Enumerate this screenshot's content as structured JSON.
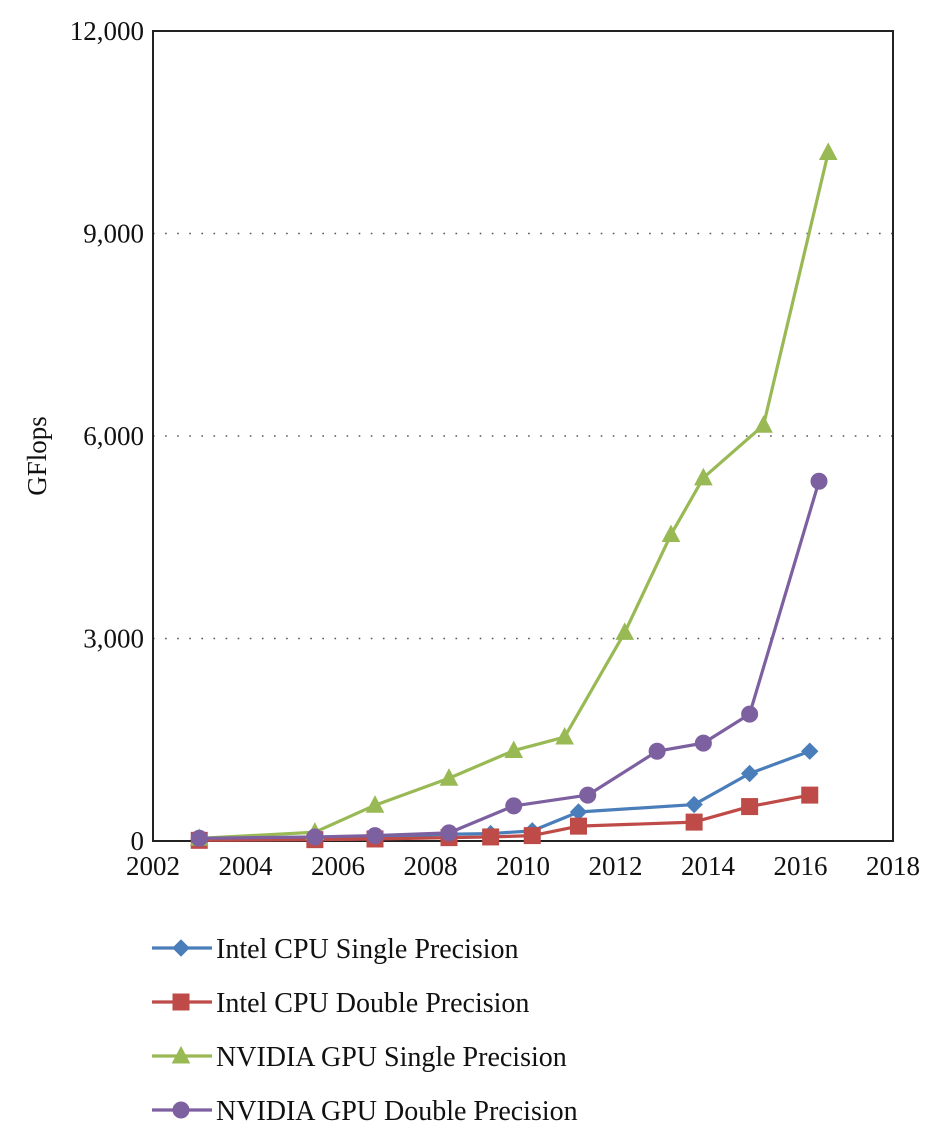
{
  "chart_data": {
    "type": "line",
    "title": "",
    "xlabel": "",
    "ylabel": "GFlops",
    "xlim": [
      2002,
      2018
    ],
    "ylim": [
      0,
      12000
    ],
    "x_ticks": [
      2002,
      2004,
      2006,
      2008,
      2010,
      2012,
      2014,
      2016,
      2018
    ],
    "x_tick_labels": [
      "2002",
      "2004",
      "2006",
      "2008",
      "2010",
      "2012",
      "2014",
      "2016",
      "2018"
    ],
    "y_ticks": [
      0,
      3000,
      6000,
      9000,
      12000
    ],
    "y_tick_labels": [
      "0",
      "3,000",
      "6,000",
      "9,000",
      "12,000"
    ],
    "grid": "horizontal dotted",
    "legend_position": "bottom",
    "series": [
      {
        "name": "Intel CPU Single Precision",
        "color": "#4a7ebb",
        "marker": "diamond",
        "x": [
          2003.0,
          2005.5,
          2006.8,
          2008.4,
          2009.3,
          2010.2,
          2011.2,
          2013.7,
          2014.9,
          2016.2
        ],
        "y": [
          20,
          40,
          60,
          100,
          110,
          150,
          430,
          540,
          1000,
          1330
        ]
      },
      {
        "name": "Intel CPU Double Precision",
        "color": "#be4b48",
        "marker": "square",
        "x": [
          2003.0,
          2005.5,
          2006.8,
          2008.4,
          2009.3,
          2010.2,
          2011.2,
          2013.7,
          2014.9,
          2016.2
        ],
        "y": [
          10,
          20,
          30,
          50,
          60,
          80,
          220,
          280,
          510,
          680
        ]
      },
      {
        "name": "NVIDIA GPU Single Precision",
        "color": "#98b954",
        "marker": "triangle",
        "x": [
          2003.0,
          2005.5,
          2006.8,
          2008.4,
          2009.8,
          2010.9,
          2012.2,
          2013.2,
          2013.9,
          2015.2,
          2016.6
        ],
        "y": [
          40,
          130,
          530,
          930,
          1340,
          1540,
          3090,
          4540,
          5380,
          6160,
          10200
        ]
      },
      {
        "name": "NVIDIA GPU Double Precision",
        "color": "#7d60a0",
        "marker": "circle",
        "x": [
          2003.0,
          2005.5,
          2006.8,
          2008.4,
          2009.8,
          2011.4,
          2012.9,
          2013.9,
          2014.9,
          2016.4
        ],
        "y": [
          40,
          60,
          80,
          120,
          520,
          680,
          1330,
          1450,
          1880,
          5330
        ]
      }
    ]
  }
}
